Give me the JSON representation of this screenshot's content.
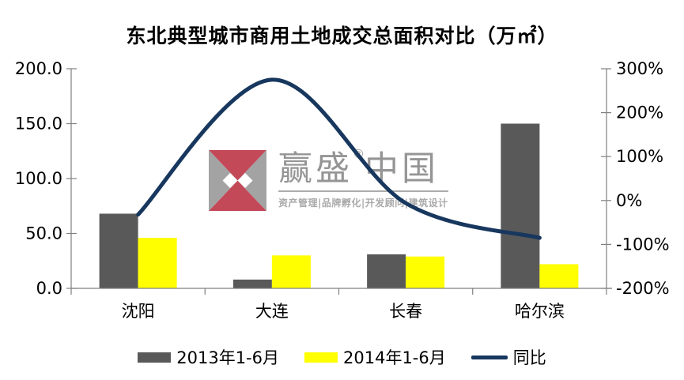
{
  "title": "东北典型城市商用土地成交总面积对比（万㎡）",
  "chart_data": {
    "type": "combo-bar-line",
    "title": "东北典型城市商用土地成交总面积对比（万㎡）",
    "categories": [
      "沈阳",
      "大连",
      "长春",
      "哈尔滨"
    ],
    "series": [
      {
        "name": "2013年1-6月",
        "type": "bar",
        "axis": "left",
        "color": "#595959",
        "values": [
          68,
          8,
          31,
          150
        ]
      },
      {
        "name": "2014年1-6月",
        "type": "bar",
        "axis": "left",
        "color": "#FFFF00",
        "values": [
          46,
          30,
          29,
          22
        ]
      },
      {
        "name": "同比",
        "type": "line",
        "axis": "right",
        "color": "#17375E",
        "values": [
          -32,
          275,
          -6,
          -85
        ],
        "unit": "%"
      }
    ],
    "left_axis": {
      "min": 0,
      "max": 200,
      "tick_labels": [
        "0.0",
        "50.0",
        "100.0",
        "150.0",
        "200.0"
      ]
    },
    "right_axis": {
      "min": -200,
      "max": 300,
      "tick_labels": [
        "-200%",
        "-100%",
        "0%",
        "100%",
        "200%",
        "300%"
      ]
    },
    "grid": false,
    "legend_position": "bottom",
    "axis_color": "#808080",
    "label_color": "#000000"
  },
  "legend": {
    "items": [
      {
        "label": "2013年1-6月",
        "swatch": "bar",
        "color": "#595959"
      },
      {
        "label": "2014年1-6月",
        "swatch": "bar",
        "color": "#FFFF00"
      },
      {
        "label": "同比",
        "swatch": "line",
        "color": "#17375E"
      }
    ]
  },
  "watermark": {
    "brand_left": "赢盛",
    "registered": "®",
    "brand_right": "中国",
    "tagline": "资产管理|品牌孵化|开发顾问|建筑设计",
    "text_color": "#8D8D8D",
    "logo_colors": {
      "red": "#BE3A4C",
      "gray": "#9C9C9C",
      "diamond": "#FFFFFF"
    }
  }
}
